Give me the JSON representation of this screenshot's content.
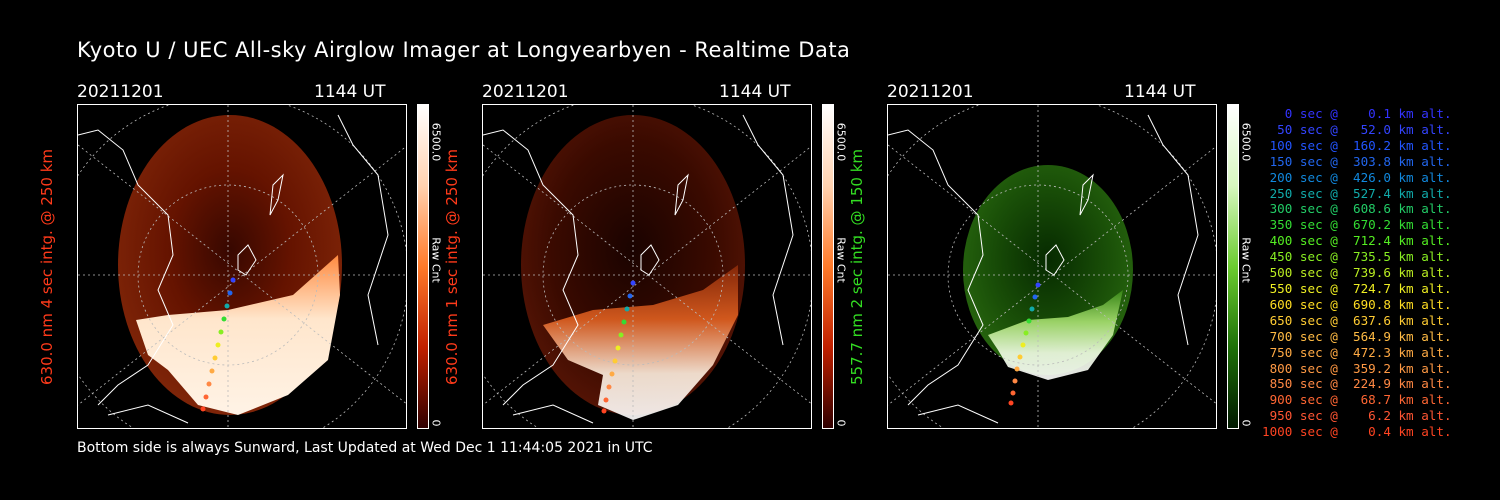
{
  "title": "Kyoto U / UEC All-sky Airglow Imager at Longyearbyen - Realtime Data",
  "footer": "Bottom side is always Sunward, Last Updated at Wed Dec  1 11:44:05 2021 in UTC",
  "panels": [
    {
      "date": "20211201",
      "time": "1144 UT",
      "side_label": "630.0 nm 4 sec intg. @ 250 km",
      "side_color": "#ff3a1a",
      "cb_max": "6500.0",
      "cb_min": "0",
      "cb_label": "Raw Cnt"
    },
    {
      "date": "20211201",
      "time": "1144 UT",
      "side_label": "630.0 nm 1 sec intg. @ 250 km",
      "side_color": "#ff3a1a",
      "cb_max": "6500.0",
      "cb_min": "0",
      "cb_label": "Raw Cnt"
    },
    {
      "date": "20211201",
      "time": "1144 UT",
      "side_label": "557.7 nm 2 sec intg. @ 150 km",
      "side_color": "#33dd22",
      "cb_max": "6500.0",
      "cb_min": "0",
      "cb_label": "Raw Cnt"
    }
  ],
  "legend": [
    {
      "text": "   0 sec @    0.1 km alt.",
      "color": "#3333ff"
    },
    {
      "text": "  50 sec @   52.0 km alt.",
      "color": "#3344ff"
    },
    {
      "text": " 100 sec @  160.2 km alt.",
      "color": "#2255ff"
    },
    {
      "text": " 150 sec @  303.8 km alt.",
      "color": "#2266ee"
    },
    {
      "text": " 200 sec @  426.0 km alt.",
      "color": "#1188dd"
    },
    {
      "text": " 250 sec @  527.4 km alt.",
      "color": "#11aaaa"
    },
    {
      "text": " 300 sec @  608.6 km alt.",
      "color": "#22cc66"
    },
    {
      "text": " 350 sec @  670.2 km alt.",
      "color": "#33dd33"
    },
    {
      "text": " 400 sec @  712.4 km alt.",
      "color": "#55ee22"
    },
    {
      "text": " 450 sec @  735.5 km alt.",
      "color": "#88ee22"
    },
    {
      "text": " 500 sec @  739.6 km alt.",
      "color": "#bbee22"
    },
    {
      "text": " 550 sec @  724.7 km alt.",
      "color": "#eeee22"
    },
    {
      "text": " 600 sec @  690.8 km alt.",
      "color": "#ffdd22"
    },
    {
      "text": " 650 sec @  637.6 km alt.",
      "color": "#ffcc33"
    },
    {
      "text": " 700 sec @  564.9 km alt.",
      "color": "#ffbb44"
    },
    {
      "text": " 750 sec @  472.3 km alt.",
      "color": "#ffaa44"
    },
    {
      "text": " 800 sec @  359.2 km alt.",
      "color": "#ff9944"
    },
    {
      "text": " 850 sec @  224.9 km alt.",
      "color": "#ff8844"
    },
    {
      "text": " 900 sec @   68.7 km alt.",
      "color": "#ff6633"
    },
    {
      "text": " 950 sec @    6.2 km alt.",
      "color": "#ff5533"
    },
    {
      "text": "1000 sec @    0.4 km alt.",
      "color": "#ff4422"
    }
  ]
}
